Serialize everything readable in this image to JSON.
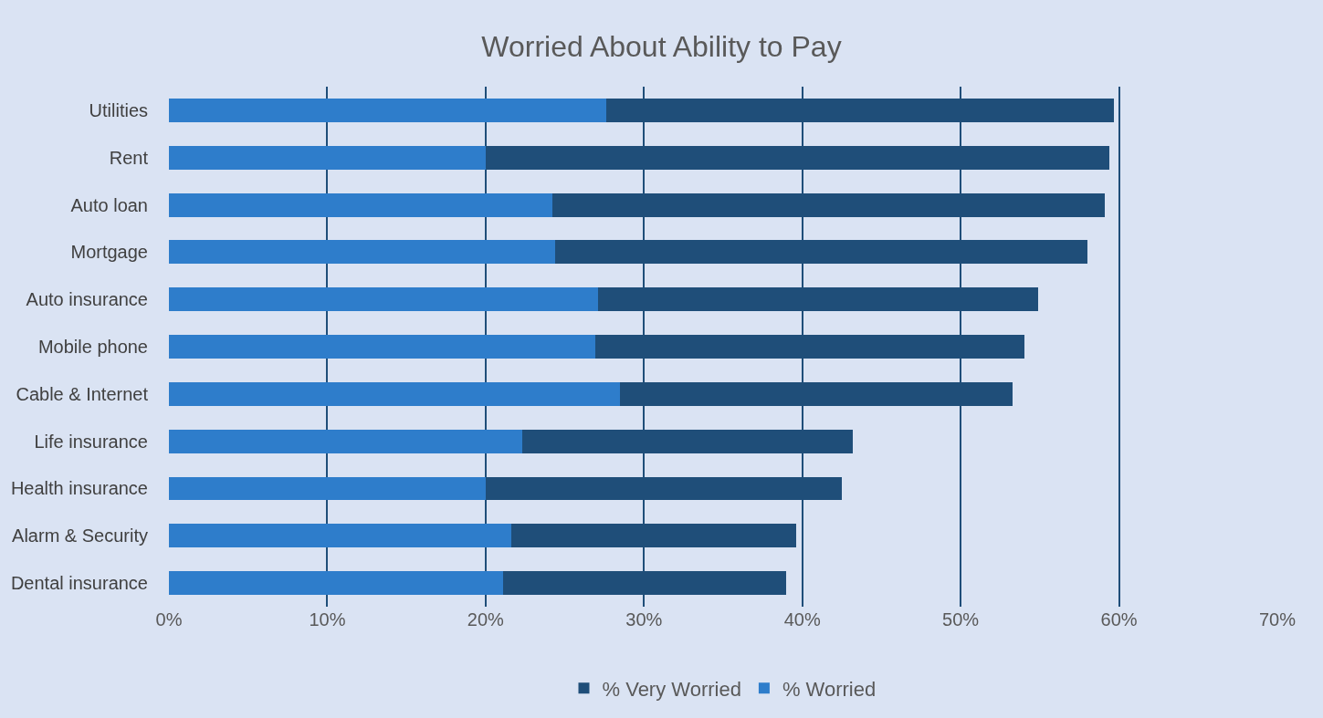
{
  "chart_data": {
    "type": "bar",
    "orientation": "horizontal",
    "stacked": true,
    "title": "Worried About Ability to Pay",
    "categories": [
      "Utilities",
      "Rent",
      "Auto loan",
      "Mortgage",
      "Auto insurance",
      "Mobile phone",
      "Cable & Internet",
      "Life insurance",
      "Health insurance",
      "Alarm & Security",
      "Dental insurance"
    ],
    "series": [
      {
        "name": "% Worried",
        "color": "#2e7dcb",
        "values": [
          27.6,
          20.0,
          24.2,
          24.4,
          27.1,
          26.9,
          28.5,
          22.3,
          20.0,
          21.6,
          21.1
        ]
      },
      {
        "name": "% Very Worried",
        "color": "#1f4e79",
        "values": [
          32.1,
          39.4,
          34.9,
          33.6,
          27.8,
          27.1,
          24.8,
          20.9,
          22.5,
          18.0,
          17.9
        ]
      }
    ],
    "xlim": [
      0,
      70
    ],
    "xticks": [
      {
        "value": 0,
        "label": "0%"
      },
      {
        "value": 10,
        "label": "10%"
      },
      {
        "value": 20,
        "label": "20%"
      },
      {
        "value": 30,
        "label": "30%"
      },
      {
        "value": 40,
        "label": "40%"
      },
      {
        "value": 50,
        "label": "50%"
      },
      {
        "value": 60,
        "label": "60%"
      },
      {
        "value": 70,
        "label": "70%"
      }
    ],
    "grid": "x",
    "legend": "bottom"
  }
}
